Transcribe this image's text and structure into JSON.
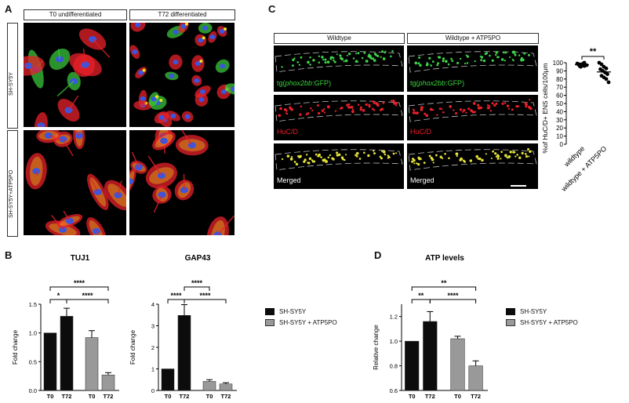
{
  "panel_letters": {
    "a": "A",
    "b": "B",
    "c": "C",
    "d": "D"
  },
  "panel_a": {
    "col_headers": [
      "T0 undifferentiated",
      "T72 differentiated"
    ],
    "row_labels": [
      "SH-SY5Y",
      "SH-SY5Y+ATP5PO"
    ],
    "colors": {
      "actin": "#e8202a",
      "tuj1": "#39c43a",
      "dapi": "#3a55e0",
      "overlap": "#f2e21a"
    }
  },
  "panel_c": {
    "col_headers": [
      "Wildtype",
      "Wildtype + ATP5PO"
    ],
    "lane_labels": [
      {
        "prefix": "tg(",
        "italic": "phox2bb",
        "suffix": ":GFP)",
        "color": "#37d13a"
      },
      {
        "prefix": "HuC/D",
        "italic": "",
        "suffix": "",
        "color": "#e8202a"
      },
      {
        "prefix": "Merged",
        "italic": "",
        "suffix": "",
        "color": "#ffffff"
      }
    ],
    "scatter": {
      "type": "scatter",
      "ylabel": "%of HuC/D+ ENS cells/100μm",
      "yticks": [
        "0",
        "10",
        "20",
        "30",
        "40",
        "50",
        "60",
        "70",
        "80",
        "90",
        "100"
      ],
      "ylim": [
        0,
        100
      ],
      "categories": [
        "wildtype",
        "wildtype + ATP5PO"
      ],
      "sig": "**",
      "series": [
        {
          "values": [
            99,
            98,
            97,
            96,
            98,
            95,
            99,
            97,
            96,
            98,
            100,
            97
          ]
        },
        {
          "values": [
            100,
            98,
            95,
            93,
            92,
            90,
            88,
            86,
            84,
            82,
            80,
            76
          ]
        }
      ]
    }
  },
  "legend": {
    "items": [
      {
        "label": "SH-SY5Y",
        "color": "#0c0c0c"
      },
      {
        "label": "SH-SY5Y + ATP5PO",
        "color": "#999999"
      }
    ]
  },
  "chart_data": [
    {
      "type": "bar",
      "title": "TUJ1",
      "ylabel": "Fold change",
      "categories": [
        "T0",
        "T72",
        "T0",
        "T72"
      ],
      "values": [
        1.0,
        1.29,
        0.92,
        0.27
      ],
      "errors": [
        0,
        0.14,
        0.12,
        0.04
      ],
      "colors": [
        "#0c0c0c",
        "#0c0c0c",
        "#999999",
        "#999999"
      ],
      "ylim": [
        0,
        1.5
      ],
      "yticks": [
        "0.0",
        "0.5",
        "1.0",
        "1.5"
      ],
      "sig": [
        {
          "from": 0,
          "to": 1,
          "label": "*",
          "level": 0
        },
        {
          "from": 1,
          "to": 3,
          "label": "****",
          "level": 0
        },
        {
          "from": 0,
          "to": 3,
          "label": "****",
          "level": 1
        }
      ]
    },
    {
      "type": "bar",
      "title": "GAP43",
      "ylabel": "Fold change",
      "categories": [
        "T0",
        "T72",
        "T0",
        "T72"
      ],
      "values": [
        1.0,
        3.48,
        0.42,
        0.3
      ],
      "errors": [
        0,
        0.5,
        0.08,
        0.06
      ],
      "colors": [
        "#0c0c0c",
        "#0c0c0c",
        "#999999",
        "#999999"
      ],
      "ylim": [
        0,
        4
      ],
      "yticks": [
        "0",
        "1",
        "2",
        "3",
        "4"
      ],
      "sig": [
        {
          "from": 0,
          "to": 1,
          "label": "****",
          "level": 0
        },
        {
          "from": 1,
          "to": 3,
          "label": "****",
          "level": 0
        },
        {
          "from": 1,
          "to": 2,
          "label": "****",
          "level": 1
        }
      ]
    },
    {
      "type": "bar",
      "title": "ATP levels",
      "ylabel": "Relative change",
      "categories": [
        "T0",
        "T72",
        "T0",
        "T72"
      ],
      "values": [
        1.0,
        1.16,
        1.02,
        0.8
      ],
      "errors": [
        0,
        0.08,
        0.02,
        0.04
      ],
      "colors": [
        "#0c0c0c",
        "#0c0c0c",
        "#999999",
        "#999999"
      ],
      "ylim": [
        0.6,
        1.3
      ],
      "yticks": [
        "0.6",
        "0.8",
        "1.0",
        "1.2"
      ],
      "sig": [
        {
          "from": 0,
          "to": 1,
          "label": "**",
          "level": 0
        },
        {
          "from": 1,
          "to": 3,
          "label": "****",
          "level": 0
        },
        {
          "from": 0,
          "to": 3,
          "label": "**",
          "level": 1
        }
      ]
    }
  ]
}
